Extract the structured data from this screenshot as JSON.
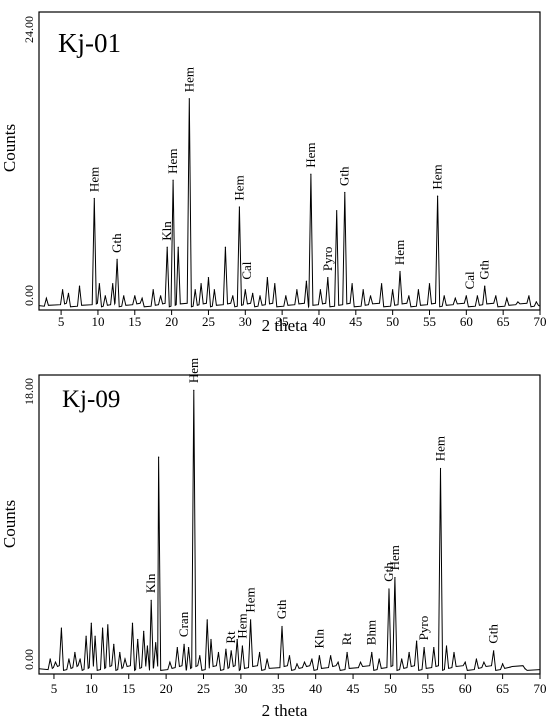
{
  "chart_data": [
    {
      "type": "line",
      "title": "Kj-01",
      "xlabel": "2 theta",
      "ylabel": "Counts",
      "y_top_label": "24.00",
      "y_bottom_label": "0.00",
      "xlim": [
        2,
        70
      ],
      "ylim": [
        0,
        24
      ],
      "xticks": [
        5,
        10,
        15,
        20,
        25,
        30,
        35,
        40,
        45,
        50,
        55,
        60,
        65,
        70
      ],
      "peaks": [
        [
          3,
          0.8
        ],
        [
          5.2,
          1.5
        ],
        [
          6,
          1.2
        ],
        [
          7.5,
          1.8
        ],
        [
          9.5,
          9
        ],
        [
          10.2,
          2
        ],
        [
          11,
          1
        ],
        [
          12,
          2
        ],
        [
          12.6,
          4
        ],
        [
          13.5,
          1
        ],
        [
          15,
          1
        ],
        [
          16,
          0.8
        ],
        [
          17.5,
          1.5
        ],
        [
          18.5,
          1
        ],
        [
          19.4,
          5
        ],
        [
          20.2,
          10.5
        ],
        [
          20.9,
          5
        ],
        [
          22.4,
          17.2
        ],
        [
          23.2,
          1.5
        ],
        [
          24,
          2
        ],
        [
          25,
          2.5
        ],
        [
          25.8,
          1.5
        ],
        [
          27.3,
          5
        ],
        [
          28.3,
          1
        ],
        [
          29.2,
          8.3
        ],
        [
          30,
          1.5
        ],
        [
          31,
          1.2
        ],
        [
          32,
          1
        ],
        [
          33,
          2.5
        ],
        [
          34,
          2
        ],
        [
          35.5,
          1
        ],
        [
          37,
          1.5
        ],
        [
          38.3,
          2.2
        ],
        [
          38.9,
          11
        ],
        [
          40.2,
          1.5
        ],
        [
          41.2,
          2.5
        ],
        [
          42.4,
          8
        ],
        [
          43.5,
          9.5
        ],
        [
          44.5,
          2
        ],
        [
          46,
          1.5
        ],
        [
          47,
          1
        ],
        [
          48.5,
          2
        ],
        [
          50,
          1.5
        ],
        [
          51,
          3
        ],
        [
          52.2,
          1
        ],
        [
          53.5,
          1.5
        ],
        [
          55,
          2
        ],
        [
          56.1,
          9.2
        ],
        [
          57,
          1
        ],
        [
          58.5,
          0.8
        ],
        [
          60,
          1
        ],
        [
          61.5,
          1
        ],
        [
          62.5,
          1.8
        ],
        [
          64,
          1
        ],
        [
          65.5,
          0.8
        ],
        [
          67,
          0.5
        ],
        [
          68.5,
          1
        ],
        [
          69.5,
          0.5
        ]
      ],
      "annotations": [
        {
          "text": "Hem",
          "x": 9.5,
          "y": 9.2
        },
        {
          "text": "Gth",
          "x": 12.6,
          "y": 4.2
        },
        {
          "text": "Kln",
          "x": 19.4,
          "y": 5.2
        },
        {
          "text": "Hem",
          "x": 20.2,
          "y": 10.7
        },
        {
          "text": "Hem",
          "x": 22.4,
          "y": 17.4
        },
        {
          "text": "Hem",
          "x": 29.2,
          "y": 8.5
        },
        {
          "text": "Cal",
          "x": 30.2,
          "y": 2
        },
        {
          "text": "Hem",
          "x": 38.9,
          "y": 11.2
        },
        {
          "text": "Pyro",
          "x": 41.2,
          "y": 2.7
        },
        {
          "text": "Gth",
          "x": 43.5,
          "y": 9.7
        },
        {
          "text": "Hem",
          "x": 51,
          "y": 3.2
        },
        {
          "text": "Hem",
          "x": 56.1,
          "y": 9.4
        },
        {
          "text": "Cal",
          "x": 60.5,
          "y": 1.2
        },
        {
          "text": "Gth",
          "x": 62.5,
          "y": 2
        }
      ]
    },
    {
      "type": "line",
      "title": "Kj-09",
      "xlabel": "2 theta",
      "ylabel": "Counts",
      "y_top_label": "18.00",
      "y_bottom_label": "0.00",
      "xlim": [
        3,
        70
      ],
      "ylim": [
        0,
        18
      ],
      "xticks": [
        5,
        10,
        15,
        20,
        25,
        30,
        35,
        40,
        45,
        50,
        55,
        60,
        65,
        70
      ],
      "peaks": [
        [
          4.5,
          0.8
        ],
        [
          5.2,
          0.6
        ],
        [
          6,
          2.7
        ],
        [
          7,
          0.8
        ],
        [
          7.8,
          1.2
        ],
        [
          8.5,
          0.8
        ],
        [
          9.3,
          2.2
        ],
        [
          10,
          3
        ],
        [
          10.5,
          2.2
        ],
        [
          11.5,
          2.7
        ],
        [
          12.2,
          2.9
        ],
        [
          13,
          1.7
        ],
        [
          13.8,
          1.2
        ],
        [
          14.5,
          0.8
        ],
        [
          15.5,
          3
        ],
        [
          16.2,
          2
        ],
        [
          17,
          2.5
        ],
        [
          17.5,
          1.6
        ],
        [
          18,
          4.4
        ],
        [
          18.6,
          1.8
        ],
        [
          19,
          13.2
        ],
        [
          20.5,
          0.6
        ],
        [
          21.5,
          1.5
        ],
        [
          22.4,
          1.7
        ],
        [
          23,
          1.5
        ],
        [
          23.7,
          17.3
        ],
        [
          24.5,
          1
        ],
        [
          25.5,
          3.2
        ],
        [
          26,
          2
        ],
        [
          27,
          1.2
        ],
        [
          28,
          1.4
        ],
        [
          28.7,
          1.3
        ],
        [
          29.5,
          2
        ],
        [
          30.2,
          1.6
        ],
        [
          31.3,
          3.2
        ],
        [
          32.5,
          1.2
        ],
        [
          33.5,
          0.8
        ],
        [
          35.5,
          2.8
        ],
        [
          36.5,
          1
        ],
        [
          37.5,
          0.5
        ],
        [
          38.5,
          0.6
        ],
        [
          39.5,
          0.8
        ],
        [
          40.5,
          1
        ],
        [
          42,
          1
        ],
        [
          43,
          0.6
        ],
        [
          44.2,
          1.2
        ],
        [
          46,
          0.6
        ],
        [
          47.5,
          1.2
        ],
        [
          48.5,
          0.8
        ],
        [
          49.8,
          5.1
        ],
        [
          50.6,
          5.8
        ],
        [
          51.5,
          0.8
        ],
        [
          52.5,
          1.2
        ],
        [
          53.5,
          1.9
        ],
        [
          54.5,
          1.5
        ],
        [
          55.8,
          1.5
        ],
        [
          56.7,
          12.5
        ],
        [
          57.5,
          1.6
        ],
        [
          58.5,
          1.2
        ],
        [
          60,
          0.6
        ],
        [
          61.5,
          0.8
        ],
        [
          62.5,
          0.6
        ],
        [
          63.8,
          1.3
        ],
        [
          65,
          0.5
        ],
        [
          66,
          0.3
        ],
        [
          68,
          0.2
        ]
      ],
      "annotations": [
        {
          "text": "Kln",
          "x": 18,
          "y": 4.6
        },
        {
          "text": "Cran",
          "x": 22.4,
          "y": 1.9
        },
        {
          "text": "Hem",
          "x": 23.7,
          "y": 17.5
        },
        {
          "text": "Rt",
          "x": 28.7,
          "y": 1.5
        },
        {
          "text": "Hem",
          "x": 30.2,
          "y": 1.8
        },
        {
          "text": "Hem",
          "x": 31.3,
          "y": 3.4
        },
        {
          "text": "Gth",
          "x": 35.5,
          "y": 3
        },
        {
          "text": "Kln",
          "x": 40.5,
          "y": 1.2
        },
        {
          "text": "Rt",
          "x": 44.2,
          "y": 1.4
        },
        {
          "text": "Bhm",
          "x": 47.5,
          "y": 1.4
        },
        {
          "text": "Gth",
          "x": 49.8,
          "y": 5.3
        },
        {
          "text": "Hem",
          "x": 50.6,
          "y": 6
        },
        {
          "text": "Pyro",
          "x": 54.5,
          "y": 1.7
        },
        {
          "text": "Hem",
          "x": 56.7,
          "y": 12.7
        },
        {
          "text": "Gth",
          "x": 63.8,
          "y": 1.5
        }
      ]
    }
  ]
}
